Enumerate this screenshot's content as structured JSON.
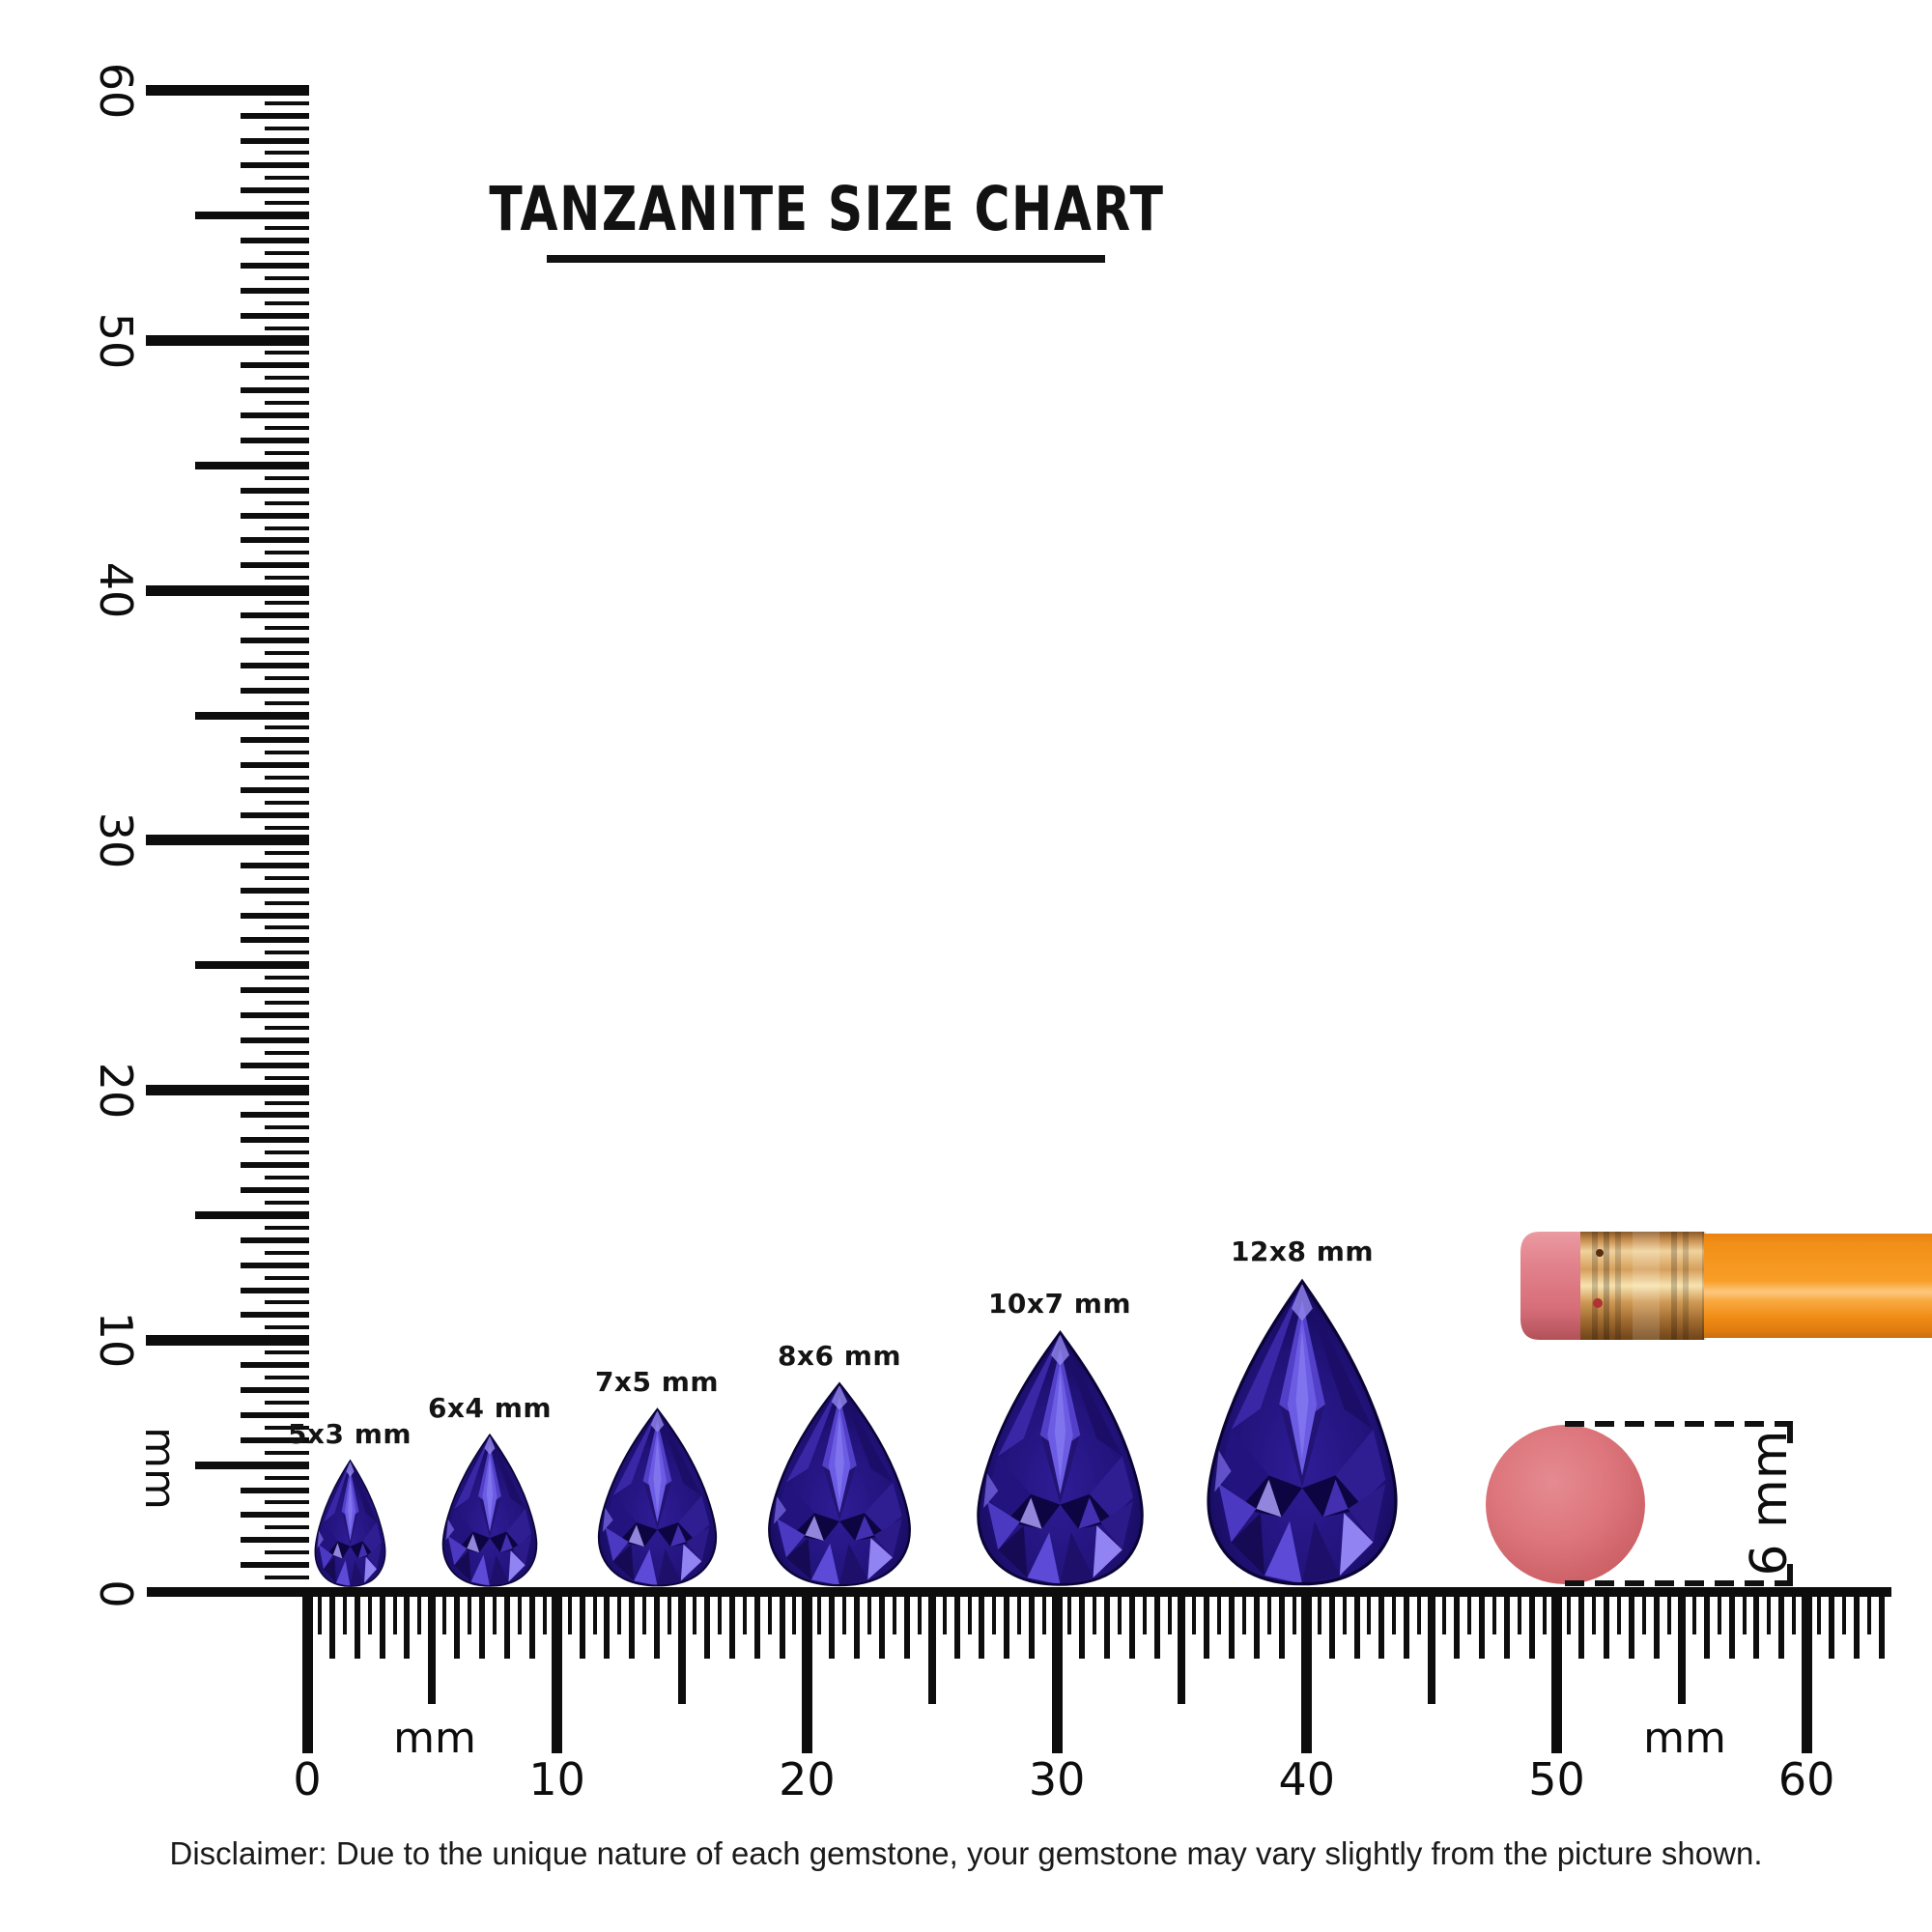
{
  "title": {
    "text": "TANZANITE SIZE CHART"
  },
  "rulers": {
    "tick_interval_mm": 0.5,
    "horizontal": {
      "unit": "mm",
      "major_labels": [
        "0",
        "10",
        "20",
        "30",
        "40",
        "50",
        "60"
      ],
      "unit_label_left": "mm",
      "unit_label_right": "mm"
    },
    "vertical": {
      "unit": "mm",
      "major_labels": [
        "60",
        "50",
        "40",
        "30",
        "20",
        "10",
        "0"
      ],
      "unit_label": "mm"
    }
  },
  "gems": [
    {
      "label": "5x3 mm",
      "length_mm": 5,
      "width_mm": 3
    },
    {
      "label": "6x4 mm",
      "length_mm": 6,
      "width_mm": 4
    },
    {
      "label": "7x5 mm",
      "length_mm": 7,
      "width_mm": 5
    },
    {
      "label": "8x6 mm",
      "length_mm": 8,
      "width_mm": 6
    },
    {
      "label": "10x7 mm",
      "length_mm": 10,
      "width_mm": 7
    },
    {
      "label": "12x8 mm",
      "length_mm": 12,
      "width_mm": 8
    }
  ],
  "reference_objects": {
    "pencil": {
      "name": "pencil with eraser"
    },
    "eraser_dot": {
      "label": "6 mm",
      "diameter_mm": 6
    }
  },
  "colors": {
    "ink": "#0d0d0d",
    "gem_base": "#22137c",
    "gem_flash": "#8376ee",
    "pencil_body": "#f79a1f",
    "eraser_pink": "#dd767d",
    "ferrule_gold": "#d6a05c"
  },
  "disclaimer": "Disclaimer: Due to the unique nature of each gemstone, your gemstone may vary slightly from the picture shown."
}
